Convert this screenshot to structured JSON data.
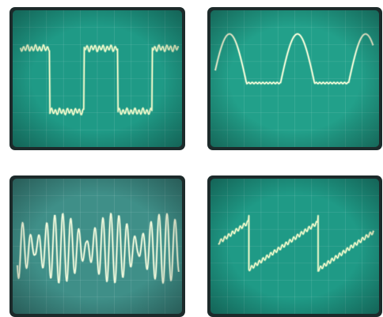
{
  "scopes": [
    {
      "id": "s1",
      "waveform": "square-with-ripple",
      "screen_color": "#1f9a86",
      "trace_color": "#e9f7c9"
    },
    {
      "id": "s2",
      "waveform": "half-rectified-sine",
      "screen_color": "#22a08a",
      "trace_color": "#f1fbd9"
    },
    {
      "id": "s3",
      "waveform": "amplitude-modulated-burst",
      "screen_color": "#3f8f88",
      "trace_color": "#eef8dc"
    },
    {
      "id": "s4",
      "waveform": "sawtooth-with-ripple",
      "screen_color": "#1f9a86",
      "trace_color": "#e9f7c9"
    }
  ]
}
